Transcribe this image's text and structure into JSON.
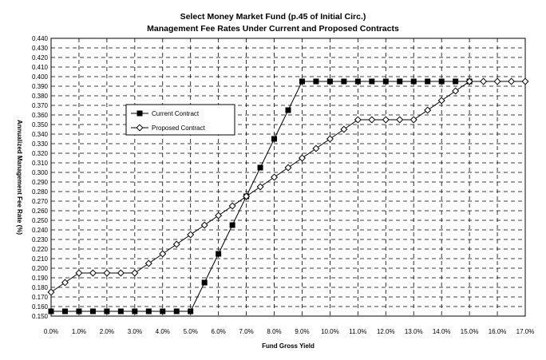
{
  "chart_data": {
    "type": "line",
    "title": [
      "Select Money Market Fund (p.45 of Initial Circ.)",
      "Management Fee Rates Under Current and Proposed Contracts"
    ],
    "xlabel": "Fund Gross Yield",
    "ylabel": "Annualized Management Fee Rate (%)",
    "xlim": [
      0,
      17
    ],
    "ylim": [
      0.15,
      0.44
    ],
    "x_ticks": [
      "0.0%",
      "1.0%",
      "2.0%",
      "3.0%",
      "4.0%",
      "5.0%",
      "6.0%",
      "7.0%",
      "8.0%",
      "9.0%",
      "10.0%",
      "11.0%",
      "12.0%",
      "13.0%",
      "14.0%",
      "15.0%",
      "16.0%",
      "17.0%"
    ],
    "y_ticks": [
      "0.150",
      "0.160",
      "0.170",
      "0.180",
      "0.190",
      "0.200",
      "0.210",
      "0.220",
      "0.230",
      "0.240",
      "0.250",
      "0.260",
      "0.270",
      "0.280",
      "0.290",
      "0.300",
      "0.310",
      "0.320",
      "0.330",
      "0.340",
      "0.350",
      "0.360",
      "0.370",
      "0.380",
      "0.390",
      "0.400",
      "0.410",
      "0.420",
      "0.430",
      "0.440"
    ],
    "grid": true,
    "legend_position": "upper-left",
    "series": [
      {
        "name": "Current Contract",
        "marker": "filled-square",
        "color": "#000000",
        "points": [
          [
            0.0,
            0.155
          ],
          [
            0.5,
            0.155
          ],
          [
            1.0,
            0.155
          ],
          [
            1.5,
            0.155
          ],
          [
            2.0,
            0.155
          ],
          [
            2.5,
            0.155
          ],
          [
            3.0,
            0.155
          ],
          [
            3.5,
            0.155
          ],
          [
            4.0,
            0.155
          ],
          [
            4.5,
            0.155
          ],
          [
            5.0,
            0.155
          ],
          [
            5.5,
            0.185
          ],
          [
            6.0,
            0.215
          ],
          [
            6.5,
            0.245
          ],
          [
            7.0,
            0.275
          ],
          [
            7.5,
            0.305
          ],
          [
            8.0,
            0.335
          ],
          [
            8.5,
            0.365
          ],
          [
            9.0,
            0.395
          ],
          [
            9.5,
            0.395
          ],
          [
            10.0,
            0.395
          ],
          [
            10.5,
            0.395
          ],
          [
            11.0,
            0.395
          ],
          [
            11.5,
            0.395
          ],
          [
            12.0,
            0.395
          ],
          [
            12.5,
            0.395
          ],
          [
            13.0,
            0.395
          ],
          [
            13.5,
            0.395
          ],
          [
            14.0,
            0.395
          ],
          [
            14.5,
            0.395
          ],
          [
            15.0,
            0.395
          ]
        ]
      },
      {
        "name": "Proposed Contract",
        "marker": "open-diamond",
        "color": "#000000",
        "points": [
          [
            0.0,
            0.175
          ],
          [
            0.5,
            0.185
          ],
          [
            1.0,
            0.195
          ],
          [
            1.5,
            0.195
          ],
          [
            2.0,
            0.195
          ],
          [
            2.5,
            0.195
          ],
          [
            3.0,
            0.195
          ],
          [
            3.5,
            0.205
          ],
          [
            4.0,
            0.215
          ],
          [
            4.5,
            0.225
          ],
          [
            5.0,
            0.235
          ],
          [
            5.5,
            0.245
          ],
          [
            6.0,
            0.255
          ],
          [
            6.5,
            0.265
          ],
          [
            7.0,
            0.275
          ],
          [
            7.5,
            0.285
          ],
          [
            8.0,
            0.295
          ],
          [
            8.5,
            0.305
          ],
          [
            9.0,
            0.315
          ],
          [
            9.5,
            0.325
          ],
          [
            10.0,
            0.335
          ],
          [
            10.5,
            0.345
          ],
          [
            11.0,
            0.355
          ],
          [
            11.5,
            0.355
          ],
          [
            12.0,
            0.355
          ],
          [
            12.5,
            0.355
          ],
          [
            13.0,
            0.355
          ],
          [
            13.5,
            0.365
          ],
          [
            14.0,
            0.375
          ],
          [
            14.5,
            0.385
          ],
          [
            15.0,
            0.395
          ],
          [
            15.5,
            0.395
          ],
          [
            16.0,
            0.395
          ],
          [
            16.5,
            0.395
          ],
          [
            17.0,
            0.395
          ]
        ]
      }
    ]
  }
}
